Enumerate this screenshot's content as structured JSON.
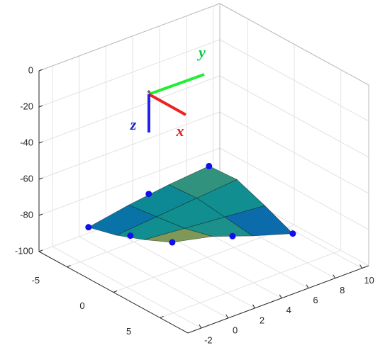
{
  "chart_data": {
    "type": "surface3d",
    "colormap": "parula",
    "grid": true,
    "xlim": [
      -3,
      10.5
    ],
    "xticks": [
      -2,
      0,
      2,
      4,
      6,
      8,
      10
    ],
    "ylim": [
      -8,
      8
    ],
    "yticks": [
      -5,
      0,
      5
    ],
    "zlim": [
      -100,
      0
    ],
    "zticks": [
      -100,
      -80,
      -60,
      -40,
      -20,
      0
    ],
    "surface": {
      "x": [
        0,
        3,
        6,
        9
      ],
      "y": [
        -7,
        -4,
        -1,
        2
      ],
      "z": [
        [
          -92,
          -88,
          -85,
          -83
        ],
        [
          -88,
          -86,
          -84,
          -82
        ],
        [
          -82,
          -84,
          -86,
          -88
        ],
        [
          -75,
          -80,
          -88,
          -95
        ]
      ]
    },
    "markers": {
      "color": "#1010ee",
      "x": [
        0,
        4.5,
        9,
        9,
        4.5,
        0,
        0
      ],
      "y": [
        -7,
        -7,
        -7,
        2,
        2,
        2,
        -2.5
      ],
      "z": [
        -92,
        -86,
        -83,
        -95,
        -84,
        -75,
        -84
      ]
    },
    "annotations": [
      {
        "text": "y",
        "color": "#00d040"
      },
      {
        "text": "x",
        "color": "#e02020"
      },
      {
        "text": "z",
        "color": "#1a2acc"
      }
    ]
  }
}
